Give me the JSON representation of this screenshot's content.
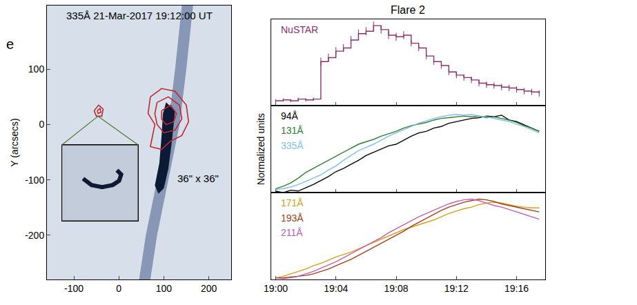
{
  "chart_data": [
    {
      "type": "line",
      "title": "335Å 21-Mar-2017 19:12:00 UT",
      "panel_label": "e",
      "y_label": "Y (arcsecs)",
      "annotations": [
        "36\" x 36\""
      ],
      "xlim": [
        -160,
        250
      ],
      "ylim": [
        -280,
        215
      ],
      "xticks": [
        -100,
        0,
        100,
        200
      ],
      "yticks": [
        -200,
        -100,
        0,
        100
      ],
      "series": [
        {
          "type": "area",
          "color": "#8797b5",
          "x": [
            140,
            165,
            150,
            135,
            110,
            85,
            70,
            45,
            60,
            85,
            110,
            125,
            140
          ],
          "y": [
            215,
            215,
            100,
            0,
            -100,
            -200,
            -280,
            -280,
            -200,
            -100,
            0,
            100,
            215
          ]
        },
        {
          "type": "area",
          "color": "#0d1a33",
          "x": [
            105,
            125,
            118,
            110,
            100,
            88,
            80,
            90,
            95,
            98,
            105
          ],
          "y": [
            40,
            25,
            -30,
            -80,
            -115,
            -125,
            -110,
            -70,
            -20,
            20,
            40
          ]
        },
        {
          "type": "line",
          "color": "#c0282c",
          "x": [
            70,
            95,
            125,
            150,
            155,
            140,
            115,
            95,
            70,
            75,
            80,
            65,
            70
          ],
          "y": [
            50,
            65,
            60,
            35,
            5,
            -20,
            -30,
            -45,
            -40,
            -20,
            0,
            20,
            50
          ]
        },
        {
          "type": "line",
          "color": "#c0282c",
          "x": [
            85,
            110,
            135,
            140,
            125,
            100,
            85,
            80,
            85
          ],
          "y": [
            40,
            50,
            35,
            10,
            -10,
            -15,
            0,
            20,
            40
          ]
        },
        {
          "type": "line",
          "color": "#c0282c",
          "x": [
            95,
            115,
            128,
            122,
            105,
            95,
            95
          ],
          "y": [
            25,
            35,
            20,
            5,
            0,
            10,
            25
          ]
        },
        {
          "type": "line",
          "color": "#c0282c",
          "x": [
            -55,
            -45,
            -35,
            -38,
            -50,
            -55
          ],
          "y": [
            25,
            35,
            28,
            15,
            15,
            25
          ]
        },
        {
          "type": "line",
          "color": "#c0282c",
          "x": [
            -48,
            -42,
            -40,
            -46,
            -48
          ],
          "y": [
            25,
            29,
            22,
            20,
            25
          ]
        }
      ],
      "inset": {
        "xlim": [
          0,
          36
        ],
        "ylim": [
          0,
          36
        ],
        "series": [
          {
            "type": "line",
            "color": "#0d1a33",
            "x": [
              10,
              14,
              19,
              24,
              27,
              28,
              26
            ],
            "y": [
              20,
              17,
              16,
              17,
              19,
              22,
              24
            ]
          }
        ]
      }
    },
    {
      "type": "line",
      "title": "Flare 2",
      "tick_labels": false,
      "xlim": [
        1139.7,
        1157.9
      ],
      "ylim": [
        0,
        1.08
      ],
      "xticks": [
        {
          "value": 1140,
          "label": "19:00"
        },
        {
          "value": 1144,
          "label": "19:04"
        },
        {
          "value": 1148,
          "label": "19:08"
        },
        {
          "value": 1152,
          "label": "19:12"
        },
        {
          "value": 1156,
          "label": "19:16"
        }
      ],
      "x": [
        1140,
        1140.5,
        1141,
        1141.5,
        1142,
        1142.5,
        1143,
        1143.5,
        1144,
        1144.5,
        1145,
        1145.5,
        1146,
        1146.5,
        1147,
        1147.5,
        1148,
        1148.5,
        1149,
        1149.5,
        1150,
        1150.5,
        1151,
        1151.5,
        1152,
        1152.5,
        1153,
        1153.5,
        1154,
        1154.5,
        1155,
        1155.5,
        1156,
        1156.5,
        1157,
        1157.5
      ],
      "series": [
        {
          "name": "NuSTAR",
          "color": "#8b2f6b",
          "line_style": "step",
          "values": [
            0.06,
            0.07,
            0.06,
            0.08,
            0.07,
            0.08,
            0.55,
            0.6,
            0.68,
            0.72,
            0.82,
            0.9,
            0.93,
            1.0,
            0.95,
            0.88,
            0.86,
            0.88,
            0.78,
            0.72,
            0.62,
            0.55,
            0.5,
            0.42,
            0.38,
            0.35,
            0.32,
            0.28,
            0.26,
            0.25,
            0.23,
            0.22,
            0.2,
            0.18,
            0.17,
            0.15
          ],
          "errors": [
            0.02,
            0.02,
            0.02,
            0.02,
            0.02,
            0.02,
            0.05,
            0.05,
            0.05,
            0.05,
            0.05,
            0.05,
            0.05,
            0.05,
            0.05,
            0.05,
            0.05,
            0.05,
            0.04,
            0.04,
            0.04,
            0.04,
            0.04,
            0.04,
            0.04,
            0.04,
            0.04,
            0.04,
            0.04,
            0.04,
            0.04,
            0.04,
            0.04,
            0.04,
            0.04,
            0.04
          ]
        }
      ]
    },
    {
      "type": "line",
      "y_label": "Normalized units",
      "tick_labels": false,
      "xlim": [
        1139.7,
        1157.9
      ],
      "ylim": [
        0,
        1.08
      ],
      "xticks": [
        {
          "value": 1140,
          "label": "19:00"
        },
        {
          "value": 1144,
          "label": "19:04"
        },
        {
          "value": 1148,
          "label": "19:08"
        },
        {
          "value": 1152,
          "label": "19:12"
        },
        {
          "value": 1156,
          "label": "19:16"
        }
      ],
      "x": [
        1140,
        1140.5,
        1141,
        1141.5,
        1142,
        1142.5,
        1143,
        1143.5,
        1144,
        1144.5,
        1145,
        1145.5,
        1146,
        1146.5,
        1147,
        1147.5,
        1148,
        1148.5,
        1149,
        1149.5,
        1150,
        1150.5,
        1151,
        1151.5,
        1152,
        1152.5,
        1153,
        1153.5,
        1154,
        1154.5,
        1155,
        1155.5,
        1156,
        1156.5,
        1157,
        1157.5
      ],
      "series": [
        {
          "name": "94Å",
          "color": "#000000",
          "values": [
            0.02,
            0.0,
            0.03,
            0.02,
            0.06,
            0.1,
            0.15,
            0.2,
            0.26,
            0.3,
            0.35,
            0.4,
            0.46,
            0.5,
            0.54,
            0.58,
            0.6,
            0.65,
            0.7,
            0.74,
            0.76,
            0.8,
            0.82,
            0.86,
            0.88,
            0.9,
            0.92,
            0.93,
            0.95,
            0.94,
            0.96,
            0.9,
            0.88,
            0.84,
            0.8,
            0.76
          ]
        },
        {
          "name": "131Å",
          "color": "#2e7d32",
          "values": [
            0.05,
            0.08,
            0.12,
            0.18,
            0.25,
            0.3,
            0.35,
            0.4,
            0.45,
            0.5,
            0.55,
            0.6,
            0.63,
            0.66,
            0.7,
            0.73,
            0.76,
            0.8,
            0.83,
            0.85,
            0.87,
            0.9,
            0.92,
            0.93,
            0.94,
            0.95,
            0.94,
            0.95,
            0.93,
            0.94,
            0.92,
            0.9,
            0.87,
            0.83,
            0.8,
            0.76
          ]
        },
        {
          "name": "335Å",
          "color": "#7fbfea",
          "values": [
            0.04,
            0.05,
            0.07,
            0.1,
            0.14,
            0.18,
            0.22,
            0.28,
            0.33,
            0.4,
            0.46,
            0.52,
            0.56,
            0.6,
            0.65,
            0.7,
            0.74,
            0.78,
            0.82,
            0.86,
            0.89,
            0.92,
            0.94,
            0.96,
            0.97,
            0.96,
            0.97,
            0.95,
            0.94,
            0.92,
            0.9,
            0.88,
            0.85,
            0.82,
            0.78,
            0.74
          ]
        }
      ]
    },
    {
      "type": "line",
      "tick_labels": "x",
      "xlim": [
        1139.7,
        1157.9
      ],
      "ylim": [
        0,
        1.08
      ],
      "xticks": [
        {
          "value": 1140,
          "label": "19:00"
        },
        {
          "value": 1144,
          "label": "19:04"
        },
        {
          "value": 1148,
          "label": "19:08"
        },
        {
          "value": 1152,
          "label": "19:12"
        },
        {
          "value": 1156,
          "label": "19:16"
        }
      ],
      "x": [
        1140,
        1140.5,
        1141,
        1141.5,
        1142,
        1142.5,
        1143,
        1143.5,
        1144,
        1144.5,
        1145,
        1145.5,
        1146,
        1146.5,
        1147,
        1147.5,
        1148,
        1148.5,
        1149,
        1149.5,
        1150,
        1150.5,
        1151,
        1151.5,
        1152,
        1152.5,
        1153,
        1153.5,
        1154,
        1154.5,
        1155,
        1155.5,
        1156,
        1156.5,
        1157,
        1157.5
      ],
      "series": [
        {
          "name": "171Å",
          "color": "#d4a017",
          "values": [
            0.02,
            0.04,
            0.07,
            0.1,
            0.13,
            0.17,
            0.2,
            0.24,
            0.28,
            0.31,
            0.34,
            0.38,
            0.42,
            0.46,
            0.5,
            0.54,
            0.58,
            0.62,
            0.65,
            0.68,
            0.71,
            0.74,
            0.78,
            0.82,
            0.85,
            0.88,
            0.9,
            0.93,
            0.95,
            0.96,
            0.95,
            0.93,
            0.91,
            0.9,
            0.89,
            0.89
          ]
        },
        {
          "name": "193Å",
          "color": "#a0401a",
          "values": [
            0.02,
            0.02,
            0.03,
            0.04,
            0.05,
            0.07,
            0.1,
            0.13,
            0.17,
            0.21,
            0.25,
            0.3,
            0.35,
            0.4,
            0.45,
            0.5,
            0.55,
            0.6,
            0.66,
            0.71,
            0.76,
            0.81,
            0.86,
            0.9,
            0.93,
            0.96,
            0.98,
            1.0,
            0.99,
            0.97,
            0.94,
            0.92,
            0.9,
            0.88,
            0.86,
            0.84
          ]
        },
        {
          "name": "211Å",
          "color": "#c060b0",
          "values": [
            0.02,
            0.01,
            0.02,
            0.04,
            0.07,
            0.1,
            0.14,
            0.18,
            0.22,
            0.27,
            0.32,
            0.37,
            0.42,
            0.47,
            0.52,
            0.58,
            0.63,
            0.68,
            0.73,
            0.78,
            0.82,
            0.86,
            0.9,
            0.94,
            0.97,
            0.99,
            1.0,
            0.98,
            0.95,
            0.92,
            0.9,
            0.87,
            0.84,
            0.81,
            0.78,
            0.75
          ]
        }
      ]
    }
  ]
}
